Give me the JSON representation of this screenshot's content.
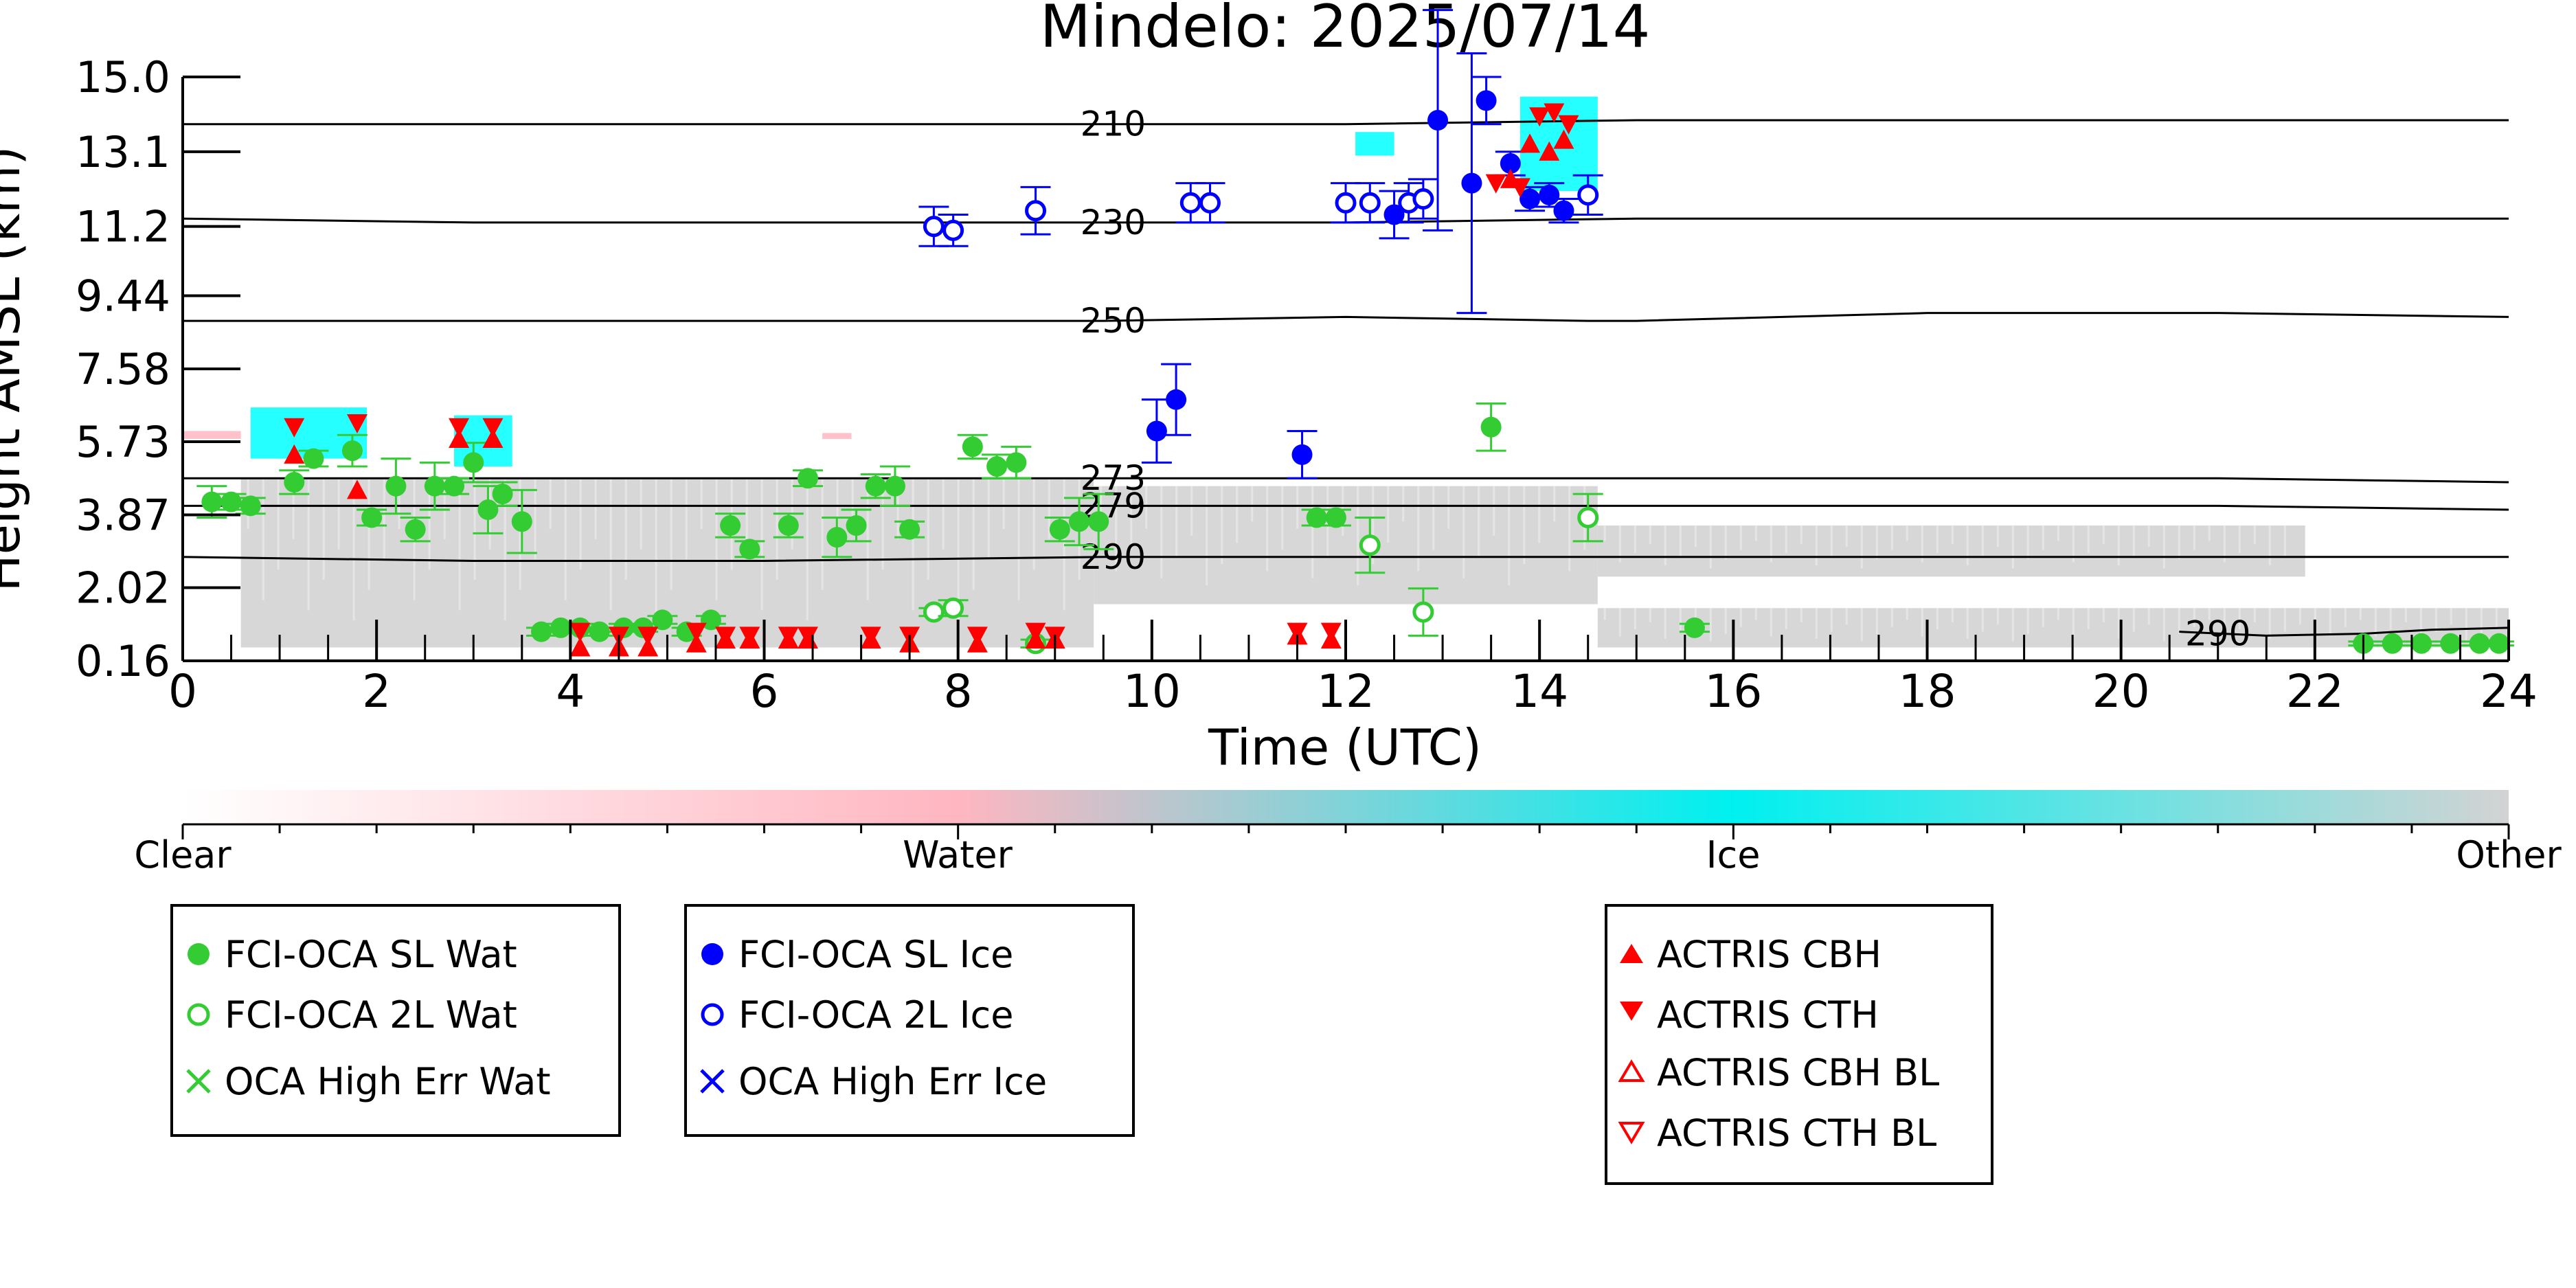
{
  "chart_data": {
    "type": "scatter",
    "title": "Mindelo: 2025/07/14",
    "xlabel": "Time (UTC)",
    "ylabel": "Height AMSL (km)",
    "xlim": [
      0,
      24
    ],
    "ylim": [
      0.16,
      15.0
    ],
    "x_ticks": [
      0,
      2,
      4,
      6,
      8,
      10,
      12,
      14,
      16,
      18,
      20,
      22,
      24
    ],
    "x_tick_labels": [
      "0",
      "2",
      "4",
      "6",
      "8",
      "10",
      "12",
      "14",
      "16",
      "18",
      "20",
      "22",
      "24"
    ],
    "y_ticks": [
      0.16,
      2.02,
      3.87,
      5.73,
      7.58,
      9.44,
      11.2,
      13.1,
      15.0
    ],
    "y_tick_labels": [
      "0.16",
      "2.02",
      "3.87",
      "5.73",
      "7.58",
      "9.44",
      "11.2",
      "13.1",
      "15.0"
    ],
    "grid": false,
    "isotherms": [
      {
        "label": "210",
        "x": [
          0,
          3,
          6,
          9.5,
          12,
          15,
          18,
          21,
          24
        ],
        "y": [
          13.8,
          13.8,
          13.8,
          13.8,
          13.8,
          13.9,
          13.9,
          13.9,
          13.9
        ]
      },
      {
        "label": "230",
        "x": [
          0,
          3,
          6,
          9.5,
          12,
          15,
          18,
          21,
          24
        ],
        "y": [
          11.4,
          11.3,
          11.3,
          11.3,
          11.3,
          11.4,
          11.4,
          11.4,
          11.4
        ]
      },
      {
        "label": "250",
        "x": [
          0,
          3,
          6,
          9.5,
          12,
          14.5,
          15,
          18,
          21,
          24
        ],
        "y": [
          8.8,
          8.8,
          8.8,
          8.8,
          8.9,
          8.8,
          8.8,
          9.0,
          9.0,
          8.9
        ]
      },
      {
        "label": "273",
        "x": [
          0,
          3,
          6,
          9.5,
          12,
          15,
          18,
          21,
          24
        ],
        "y": [
          4.8,
          4.8,
          4.8,
          4.8,
          4.8,
          4.8,
          4.8,
          4.8,
          4.7
        ]
      },
      {
        "label": "279",
        "x": [
          0,
          3,
          6,
          9.5,
          12,
          15,
          18,
          21,
          24
        ],
        "y": [
          4.1,
          4.1,
          4.1,
          4.1,
          4.1,
          4.1,
          4.1,
          4.1,
          4.0
        ]
      },
      {
        "label": "290",
        "x": [
          0,
          3,
          6,
          9.5,
          12,
          15,
          18,
          21,
          24
        ],
        "y": [
          2.8,
          2.7,
          2.7,
          2.8,
          2.8,
          2.8,
          2.8,
          2.8,
          2.8
        ]
      },
      {
        "label": "290",
        "x": [
          20.6,
          21.5,
          22.5,
          23.2,
          24
        ],
        "y": [
          0.9,
          0.8,
          0.85,
          0.95,
          1.0
        ]
      }
    ],
    "background_regions": [
      {
        "class": "Other",
        "x0": 0.6,
        "x1": 9.4,
        "y0": 0.5,
        "y1": 4.8
      },
      {
        "class": "Other",
        "x0": 9.4,
        "x1": 14.6,
        "y0": 1.6,
        "y1": 4.6
      },
      {
        "class": "Other",
        "x0": 14.6,
        "x1": 21.9,
        "y0": 2.3,
        "y1": 3.6
      },
      {
        "class": "Other",
        "x0": 14.6,
        "x1": 24,
        "y0": 0.5,
        "y1": 1.5
      },
      {
        "class": "Ice",
        "x0": 0.7,
        "x1": 1.9,
        "y0": 5.3,
        "y1": 6.6
      },
      {
        "class": "Ice",
        "x0": 2.8,
        "x1": 3.4,
        "y0": 5.1,
        "y1": 6.4
      },
      {
        "class": "Ice",
        "x0": 13.8,
        "x1": 14.6,
        "y0": 12.1,
        "y1": 14.5
      },
      {
        "class": "Ice",
        "x0": 12.1,
        "x1": 12.5,
        "y0": 13.0,
        "y1": 13.6
      },
      {
        "class": "Water",
        "x0": 0,
        "x1": 0.6,
        "y0": 5.8,
        "y1": 6.0
      },
      {
        "class": "Water",
        "x0": 6.6,
        "x1": 6.9,
        "y0": 5.8,
        "y1": 5.95
      }
    ],
    "colorbar": {
      "labels": [
        "Clear",
        "Water",
        "Ice",
        "Other"
      ],
      "colors": [
        "#ffffff",
        "#ffb6c1",
        "#00ffff",
        "#d3d3d3"
      ]
    },
    "series": [
      {
        "name": "FCI-OCA SL Wat",
        "marker": "filled-circle",
        "color": "#33cc33",
        "points": [
          {
            "x": 0.3,
            "y": 4.2,
            "err": 0.4
          },
          {
            "x": 0.5,
            "y": 4.2,
            "err": 0.2
          },
          {
            "x": 0.7,
            "y": 4.1,
            "err": 0.2
          },
          {
            "x": 1.15,
            "y": 4.7,
            "err": 0.3
          },
          {
            "x": 1.35,
            "y": 5.3,
            "err": 0.2
          },
          {
            "x": 1.75,
            "y": 5.5,
            "err": 0.4
          },
          {
            "x": 1.95,
            "y": 3.8,
            "err": 0.2
          },
          {
            "x": 2.2,
            "y": 4.6,
            "err": 0.7
          },
          {
            "x": 2.4,
            "y": 3.5,
            "err": 0.3
          },
          {
            "x": 2.6,
            "y": 4.6,
            "err": 0.6
          },
          {
            "x": 2.8,
            "y": 4.6,
            "err": 0.2
          },
          {
            "x": 3.0,
            "y": 5.2,
            "err": 0.5
          },
          {
            "x": 3.15,
            "y": 4.0,
            "err": 0.6
          },
          {
            "x": 3.3,
            "y": 4.4,
            "err": 0.3
          },
          {
            "x": 3.5,
            "y": 3.7,
            "err": 0.8
          },
          {
            "x": 3.7,
            "y": 0.9,
            "err": 0.1
          },
          {
            "x": 3.9,
            "y": 1.0,
            "err": 0.1
          },
          {
            "x": 4.1,
            "y": 1.0,
            "err": 0.1
          },
          {
            "x": 4.3,
            "y": 0.9,
            "err": 0.1
          },
          {
            "x": 4.55,
            "y": 1.0,
            "err": 0.1
          },
          {
            "x": 4.75,
            "y": 1.0,
            "err": 0.1
          },
          {
            "x": 4.95,
            "y": 1.2,
            "err": 0.1
          },
          {
            "x": 5.2,
            "y": 0.9,
            "err": 0.1
          },
          {
            "x": 5.45,
            "y": 1.2,
            "err": 0.1
          },
          {
            "x": 5.65,
            "y": 3.6,
            "err": 0.3
          },
          {
            "x": 5.85,
            "y": 3.0,
            "err": 0.2
          },
          {
            "x": 6.25,
            "y": 3.6,
            "err": 0.3
          },
          {
            "x": 6.45,
            "y": 4.8,
            "err": 0.2
          },
          {
            "x": 6.75,
            "y": 3.3,
            "err": 0.5
          },
          {
            "x": 6.95,
            "y": 3.6,
            "err": 0.4
          },
          {
            "x": 7.15,
            "y": 4.6,
            "err": 0.3
          },
          {
            "x": 7.35,
            "y": 4.6,
            "err": 0.5
          },
          {
            "x": 7.5,
            "y": 3.5,
            "err": 0.2
          },
          {
            "x": 8.15,
            "y": 5.6,
            "err": 0.3
          },
          {
            "x": 8.4,
            "y": 5.1,
            "err": 0.3
          },
          {
            "x": 8.6,
            "y": 5.2,
            "err": 0.4
          },
          {
            "x": 9.05,
            "y": 3.5,
            "err": 0.3
          },
          {
            "x": 9.25,
            "y": 3.7,
            "err": 0.6
          },
          {
            "x": 9.45,
            "y": 3.7,
            "err": 0.7
          },
          {
            "x": 11.7,
            "y": 3.8,
            "err": 0.2
          },
          {
            "x": 11.9,
            "y": 3.8,
            "err": 0.2
          },
          {
            "x": 13.5,
            "y": 6.1,
            "err": 0.6
          },
          {
            "x": 15.6,
            "y": 1.0,
            "err": 0.1
          },
          {
            "x": 22.5,
            "y": 0.6,
            "err": 0.05
          },
          {
            "x": 22.8,
            "y": 0.6,
            "err": 0.05
          },
          {
            "x": 23.1,
            "y": 0.6,
            "err": 0.05
          },
          {
            "x": 23.4,
            "y": 0.6,
            "err": 0.05
          },
          {
            "x": 23.7,
            "y": 0.6,
            "err": 0.05
          },
          {
            "x": 23.9,
            "y": 0.6,
            "err": 0.05
          }
        ]
      },
      {
        "name": "FCI-OCA 2L Wat",
        "marker": "open-circle",
        "color": "#33cc33",
        "points": [
          {
            "x": 7.75,
            "y": 1.4,
            "err": 0.1
          },
          {
            "x": 7.95,
            "y": 1.5,
            "err": 0.2
          },
          {
            "x": 8.8,
            "y": 0.6,
            "err": 0.1
          },
          {
            "x": 12.25,
            "y": 3.1,
            "err": 0.7
          },
          {
            "x": 12.8,
            "y": 1.4,
            "err": 0.6
          },
          {
            "x": 14.5,
            "y": 3.8,
            "err": 0.6
          }
        ]
      },
      {
        "name": "OCA High Err Wat",
        "marker": "x",
        "color": "#33cc33",
        "points": []
      },
      {
        "name": "FCI-OCA SL Ice",
        "marker": "filled-circle",
        "color": "#0000ff",
        "points": [
          {
            "x": 10.05,
            "y": 6.0,
            "err": 0.8
          },
          {
            "x": 10.25,
            "y": 6.8,
            "err": 0.9
          },
          {
            "x": 11.55,
            "y": 5.4,
            "err": 0.6
          },
          {
            "x": 12.5,
            "y": 11.5,
            "err": 0.6
          },
          {
            "x": 12.95,
            "y": 13.9,
            "err": 2.8
          },
          {
            "x": 13.3,
            "y": 12.3,
            "err": 3.3
          },
          {
            "x": 13.45,
            "y": 14.4,
            "err": 0.6
          },
          {
            "x": 13.7,
            "y": 12.8,
            "err": 0.3
          },
          {
            "x": 13.9,
            "y": 11.9,
            "err": 0.3
          },
          {
            "x": 14.1,
            "y": 12.0,
            "err": 0.3
          },
          {
            "x": 14.25,
            "y": 11.6,
            "err": 0.3
          }
        ]
      },
      {
        "name": "FCI-OCA 2L Ice",
        "marker": "open-circle",
        "color": "#0000ff",
        "points": [
          {
            "x": 7.75,
            "y": 11.2,
            "err": 0.5
          },
          {
            "x": 7.95,
            "y": 11.1,
            "err": 0.4
          },
          {
            "x": 8.8,
            "y": 11.6,
            "err": 0.6
          },
          {
            "x": 10.4,
            "y": 11.8,
            "err": 0.5
          },
          {
            "x": 10.6,
            "y": 11.8,
            "err": 0.5
          },
          {
            "x": 12.0,
            "y": 11.8,
            "err": 0.5
          },
          {
            "x": 12.25,
            "y": 11.8,
            "err": 0.5
          },
          {
            "x": 12.65,
            "y": 11.8,
            "err": 0.5
          },
          {
            "x": 12.8,
            "y": 11.9,
            "err": 0.5
          },
          {
            "x": 14.5,
            "y": 12.0,
            "err": 0.5
          }
        ]
      },
      {
        "name": "OCA High Err Ice",
        "marker": "x",
        "color": "#0000ff",
        "points": []
      },
      {
        "name": "ACTRIS CBH",
        "marker": "triangle-up",
        "color": "#ff0000",
        "points": [
          {
            "x": 1.15,
            "y": 5.4
          },
          {
            "x": 1.8,
            "y": 4.5
          },
          {
            "x": 2.85,
            "y": 5.8
          },
          {
            "x": 3.2,
            "y": 5.8
          },
          {
            "x": 4.1,
            "y": 0.5
          },
          {
            "x": 4.5,
            "y": 0.5
          },
          {
            "x": 4.8,
            "y": 0.5
          },
          {
            "x": 5.3,
            "y": 0.6
          },
          {
            "x": 5.6,
            "y": 0.7
          },
          {
            "x": 5.85,
            "y": 0.7
          },
          {
            "x": 6.25,
            "y": 0.7
          },
          {
            "x": 6.45,
            "y": 0.7
          },
          {
            "x": 7.1,
            "y": 0.7
          },
          {
            "x": 7.5,
            "y": 0.6
          },
          {
            "x": 8.2,
            "y": 0.6
          },
          {
            "x": 8.8,
            "y": 0.7
          },
          {
            "x": 9.0,
            "y": 0.7
          },
          {
            "x": 11.5,
            "y": 0.8
          },
          {
            "x": 11.85,
            "y": 0.7
          },
          {
            "x": 13.7,
            "y": 12.4
          },
          {
            "x": 13.9,
            "y": 13.3
          },
          {
            "x": 14.1,
            "y": 13.1
          },
          {
            "x": 14.25,
            "y": 13.4
          }
        ]
      },
      {
        "name": "ACTRIS CTH",
        "marker": "triangle-down",
        "color": "#ff0000",
        "points": [
          {
            "x": 1.15,
            "y": 6.1
          },
          {
            "x": 1.8,
            "y": 6.2
          },
          {
            "x": 2.85,
            "y": 6.1
          },
          {
            "x": 3.2,
            "y": 6.1
          },
          {
            "x": 4.1,
            "y": 0.9
          },
          {
            "x": 4.5,
            "y": 0.8
          },
          {
            "x": 4.8,
            "y": 0.8
          },
          {
            "x": 5.3,
            "y": 0.9
          },
          {
            "x": 5.6,
            "y": 0.8
          },
          {
            "x": 5.85,
            "y": 0.8
          },
          {
            "x": 6.25,
            "y": 0.8
          },
          {
            "x": 6.45,
            "y": 0.8
          },
          {
            "x": 7.1,
            "y": 0.8
          },
          {
            "x": 7.5,
            "y": 0.8
          },
          {
            "x": 8.2,
            "y": 0.8
          },
          {
            "x": 8.8,
            "y": 0.9
          },
          {
            "x": 9.0,
            "y": 0.8
          },
          {
            "x": 11.5,
            "y": 0.9
          },
          {
            "x": 11.85,
            "y": 0.9
          },
          {
            "x": 13.55,
            "y": 12.3
          },
          {
            "x": 13.8,
            "y": 12.2
          },
          {
            "x": 14.0,
            "y": 14.0
          },
          {
            "x": 14.15,
            "y": 14.1
          },
          {
            "x": 14.3,
            "y": 13.8
          }
        ]
      },
      {
        "name": "ACTRIS CBH BL",
        "marker": "open-triangle-up",
        "color": "#ff0000",
        "points": []
      },
      {
        "name": "ACTRIS CTH BL",
        "marker": "open-triangle-down",
        "color": "#ff0000",
        "points": []
      }
    ],
    "legend_groups": [
      {
        "placement": "bottom-left",
        "entries": [
          "FCI-OCA SL Wat",
          "FCI-OCA 2L Wat",
          "OCA High Err Wat"
        ]
      },
      {
        "placement": "bottom-center-left",
        "entries": [
          "FCI-OCA SL Ice",
          "FCI-OCA 2L Ice",
          "OCA High Err Ice"
        ]
      },
      {
        "placement": "bottom-right",
        "entries": [
          "ACTRIS CBH",
          "ACTRIS CTH",
          "ACTRIS CBH BL",
          "ACTRIS CTH BL"
        ]
      }
    ]
  }
}
